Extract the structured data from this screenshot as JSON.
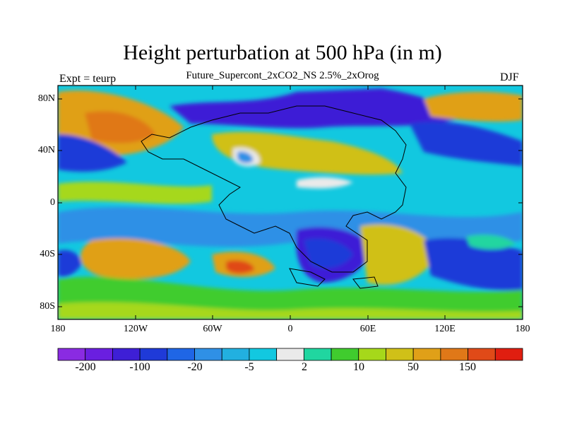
{
  "title": "Height perturbation at 500 hPa (in m)",
  "subtitle": "Future_Supercont_2xCO2_NS 2.5%_2xOrog",
  "left_string": "Expt = teurp",
  "right_string": "DJF",
  "x_ticks": [
    "180",
    "120W",
    "60W",
    "0",
    "60E",
    "120E",
    "180"
  ],
  "y_ticks": [
    "80N",
    "40N",
    "0",
    "40S",
    "80S"
  ],
  "colorbar": {
    "labels": [
      "-200",
      "-100",
      "-20",
      "-5",
      "2",
      "10",
      "50",
      "150"
    ],
    "colors": [
      "#8a2be2",
      "#6a1fe0",
      "#3e1fd6",
      "#1f3ad8",
      "#1f66e6",
      "#2f90e6",
      "#22b0e0",
      "#12c8e0",
      "#eaeaea",
      "#20d6a0",
      "#40cc2e",
      "#a6d81a",
      "#d0c018",
      "#e0a018",
      "#e07818",
      "#e04a18",
      "#e01e10"
    ]
  },
  "map_data": {
    "projection": "cylindrical-equidistant",
    "field": "height perturbation at 500 hPa",
    "units": "m",
    "lon_range": [
      -180,
      180
    ],
    "lat_range": [
      -90,
      90
    ]
  }
}
